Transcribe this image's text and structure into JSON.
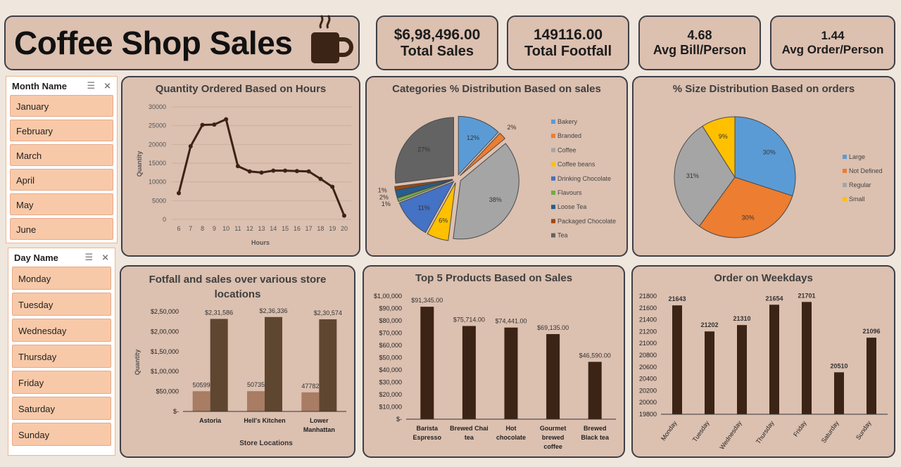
{
  "header": {
    "title": "Coffee Shop Sales"
  },
  "kpis": [
    {
      "value": "$6,98,496.00",
      "label": "Total Sales"
    },
    {
      "value": "149116.00",
      "label": "Total Footfall"
    },
    {
      "value": "4.68",
      "label": "Avg Bill/Person"
    },
    {
      "value": "1.44",
      "label": "Avg Order/Person"
    }
  ],
  "slicers": {
    "month": {
      "title": "Month Name",
      "items": [
        "January",
        "February",
        "March",
        "April",
        "May",
        "June"
      ]
    },
    "day": {
      "title": "Day Name",
      "items": [
        "Monday",
        "Tuesday",
        "Wednesday",
        "Thursday",
        "Friday",
        "Saturday",
        "Sunday"
      ]
    }
  },
  "chart_data": [
    {
      "id": "hours",
      "type": "line",
      "title": "Quantity Ordered Based on Hours",
      "xlabel": "Hours",
      "ylabel": "Quantity",
      "x": [
        "6",
        "7",
        "8",
        "9",
        "10",
        "11",
        "12",
        "13",
        "14",
        "15",
        "16",
        "17",
        "18",
        "19",
        "20"
      ],
      "values": [
        7000,
        19500,
        25200,
        25300,
        26700,
        14200,
        12800,
        12500,
        13000,
        13000,
        12900,
        12800,
        10800,
        8700,
        1000
      ],
      "ylim": [
        0,
        30000
      ],
      "yticks": [
        "0",
        "5000",
        "10000",
        "15000",
        "20000",
        "25000",
        "30000"
      ],
      "color": "#3b2416"
    },
    {
      "id": "categories",
      "type": "pie",
      "title": "Categories % Distribution Based on sales",
      "slices": [
        {
          "name": "Bakery",
          "value": 12,
          "label": "12%",
          "color": "#5b9bd5"
        },
        {
          "name": "Branded",
          "value": 2,
          "label": "2%",
          "color": "#ed7d31"
        },
        {
          "name": "Coffee",
          "value": 38,
          "label": "38%",
          "color": "#a5a5a5"
        },
        {
          "name": "Coffee beans",
          "value": 6,
          "label": "6%",
          "color": "#ffc000"
        },
        {
          "name": "Drinking Chocolate",
          "value": 11,
          "label": "11%",
          "color": "#4472c4"
        },
        {
          "name": "Flavours",
          "value": 1,
          "label": "1%",
          "color": "#70ad47"
        },
        {
          "name": "Loose Tea",
          "value": 2,
          "label": "2%",
          "color": "#255e91"
        },
        {
          "name": "Packaged Chocolate",
          "value": 1,
          "label": "1%",
          "color": "#9e480e"
        },
        {
          "name": "Tea",
          "value": 27,
          "label": "27%",
          "color": "#636363"
        }
      ]
    },
    {
      "id": "sizes",
      "type": "pie",
      "title": "% Size Distribution Based on orders",
      "slices": [
        {
          "name": "Large",
          "value": 30,
          "label": "30%",
          "color": "#5b9bd5"
        },
        {
          "name": "Not Defined",
          "value": 30,
          "label": "30%",
          "color": "#ed7d31"
        },
        {
          "name": "Regular",
          "value": 31,
          "label": "31%",
          "color": "#a5a5a5"
        },
        {
          "name": "Small",
          "value": 9,
          "label": "9%",
          "color": "#ffc000"
        }
      ]
    },
    {
      "id": "stores",
      "type": "bar",
      "title": "Fotfall and sales over various store locations",
      "xlabel": "Store Locations",
      "ylabel": "Quantity",
      "categories": [
        "Astoria",
        "Hell's Kitchen",
        "Lower Manhattan"
      ],
      "series": [
        {
          "values": [
            50599,
            50735,
            47782
          ],
          "labels": [
            "50599",
            "50735",
            "47782"
          ],
          "color": "#a97c64"
        },
        {
          "values": [
            231586,
            236336,
            230574
          ],
          "labels": [
            "$2,31,586",
            "$2,36,336",
            "$2,30,574"
          ],
          "color": "#5f4631"
        }
      ],
      "ylim": [
        0,
        250000
      ],
      "yticks": [
        "$-",
        "$50,000",
        "$1,00,000",
        "$1,50,000",
        "$2,00,000",
        "$2,50,000"
      ]
    },
    {
      "id": "products",
      "type": "bar",
      "title": "Top 5 Products Based on Sales",
      "categories": [
        "Barista Espresso",
        "Brewed Chai tea",
        "Hot chocolate",
        "Gourmet brewed coffee",
        "Brewed Black tea"
      ],
      "values": [
        91345,
        75714,
        74441,
        69135,
        46590
      ],
      "labels": [
        "$91,345.00",
        "$75,714.00",
        "$74,441.00",
        "$69,135.00",
        "$46,590.00"
      ],
      "ylim": [
        0,
        100000
      ],
      "yticks": [
        "$-",
        "$10,000",
        "$20,000",
        "$30,000",
        "$40,000",
        "$50,000",
        "$60,000",
        "$70,000",
        "$80,000",
        "$90,000",
        "$1,00,000"
      ],
      "color": "#3b2416"
    },
    {
      "id": "weekdays",
      "type": "bar",
      "title": "Order on Weekdays",
      "categories": [
        "Monday",
        "Tuesday",
        "Wednesday",
        "Thursday",
        "Friday",
        "Saturday",
        "Sunday"
      ],
      "values": [
        21643,
        21202,
        21310,
        21654,
        21701,
        20510,
        21096
      ],
      "labels": [
        "21643",
        "21202",
        "21310",
        "21654",
        "21701",
        "20510",
        "21096"
      ],
      "ylim": [
        19800,
        21800
      ],
      "yticks": [
        "19800",
        "20000",
        "20200",
        "20400",
        "20600",
        "20800",
        "21000",
        "21200",
        "21400",
        "21600",
        "21800"
      ],
      "color": "#3b2416"
    }
  ]
}
